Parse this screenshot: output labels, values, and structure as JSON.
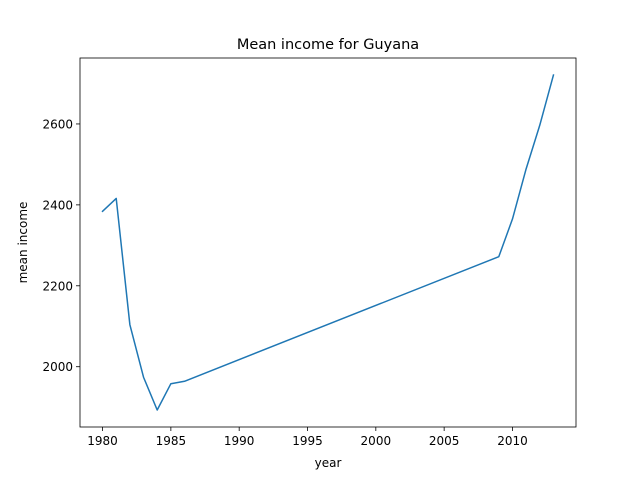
{
  "chart_data": {
    "type": "line",
    "title": "Mean income for Guyana",
    "xlabel": "year",
    "ylabel": "mean income",
    "xlim": [
      1978.35,
      2014.65
    ],
    "ylim": [
      1851.0,
      2763.0
    ],
    "xticks": [
      1980,
      1985,
      1990,
      1995,
      2000,
      2005,
      2010
    ],
    "yticks": [
      2000,
      2200,
      2400,
      2600
    ],
    "grid": false,
    "color": "#1f77b4",
    "series": [
      {
        "x": [
          1980,
          1981,
          1982,
          1983,
          1984,
          1985,
          1986,
          2009,
          2010,
          2011,
          2012,
          2013
        ],
        "values": [
          2384,
          2416,
          2104,
          1974,
          1893,
          1958,
          1964,
          2272,
          2365,
          2489,
          2597,
          2721
        ]
      }
    ]
  }
}
